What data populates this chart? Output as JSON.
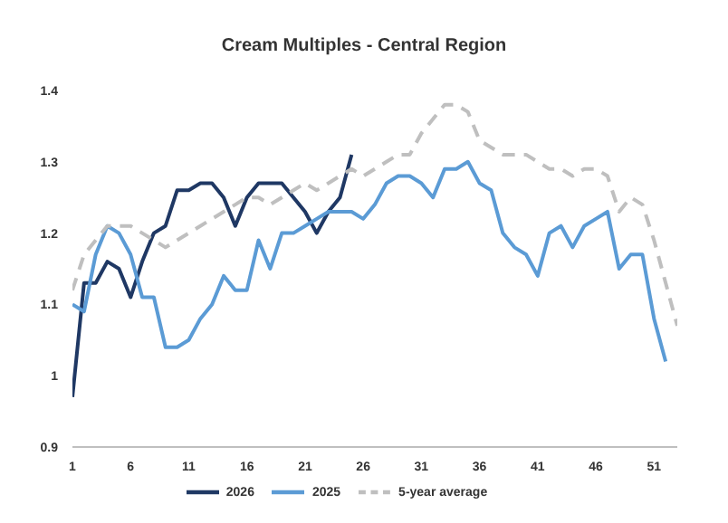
{
  "chart_data": {
    "type": "line",
    "title": "Cream Multiples - Central Region",
    "x": [
      1,
      2,
      3,
      4,
      5,
      6,
      7,
      8,
      9,
      10,
      11,
      12,
      13,
      14,
      15,
      16,
      17,
      18,
      19,
      20,
      21,
      22,
      23,
      24,
      25,
      26,
      27,
      28,
      29,
      30,
      31,
      32,
      33,
      34,
      35,
      36,
      37,
      38,
      39,
      40,
      41,
      42,
      43,
      44,
      45,
      46,
      47,
      48,
      49,
      50,
      51,
      52,
      53
    ],
    "xlim": [
      1,
      53
    ],
    "xticks": [
      1,
      6,
      11,
      16,
      21,
      26,
      31,
      36,
      41,
      46,
      51
    ],
    "series": [
      {
        "name": "2026",
        "color": "#1f3864",
        "line_style": "solid",
        "values": [
          0.97,
          1.13,
          1.13,
          1.16,
          1.15,
          1.11,
          1.16,
          1.2,
          1.21,
          1.26,
          1.26,
          1.27,
          1.27,
          1.25,
          1.21,
          1.25,
          1.27,
          1.27,
          1.27,
          1.25,
          1.23,
          1.2,
          1.23,
          1.25,
          1.31,
          null,
          null,
          null,
          null,
          null,
          null,
          null,
          null,
          null,
          null,
          null,
          null,
          null,
          null,
          null,
          null,
          null,
          null,
          null,
          null,
          null,
          null,
          null,
          null,
          null,
          null,
          null,
          null
        ]
      },
      {
        "name": "2025",
        "color": "#5b9bd5",
        "line_style": "solid",
        "values": [
          1.1,
          1.09,
          1.17,
          1.21,
          1.2,
          1.17,
          1.11,
          1.11,
          1.04,
          1.04,
          1.05,
          1.08,
          1.1,
          1.14,
          1.12,
          1.12,
          1.19,
          1.15,
          1.2,
          1.2,
          1.21,
          1.22,
          1.23,
          1.23,
          1.23,
          1.22,
          1.24,
          1.27,
          1.28,
          1.28,
          1.27,
          1.25,
          1.29,
          1.29,
          1.3,
          1.27,
          1.26,
          1.2,
          1.18,
          1.17,
          1.14,
          1.2,
          1.21,
          1.18,
          1.21,
          1.22,
          1.23,
          1.15,
          1.17,
          1.17,
          1.08,
          1.02,
          null
        ]
      },
      {
        "name": "5-year average",
        "color": "#bfbfbf",
        "line_style": "dashed",
        "values": [
          1.12,
          1.17,
          1.19,
          1.21,
          1.21,
          1.21,
          1.2,
          1.19,
          1.18,
          1.19,
          1.2,
          1.21,
          1.22,
          1.23,
          1.24,
          1.25,
          1.25,
          1.24,
          1.25,
          1.26,
          1.27,
          1.26,
          1.27,
          1.28,
          1.29,
          1.28,
          1.29,
          1.3,
          1.31,
          1.31,
          1.34,
          1.36,
          1.38,
          1.38,
          1.37,
          1.33,
          1.32,
          1.31,
          1.31,
          1.31,
          1.3,
          1.29,
          1.29,
          1.28,
          1.29,
          1.29,
          1.28,
          1.23,
          1.25,
          1.24,
          1.19,
          1.13,
          1.07
        ]
      }
    ],
    "ylim": [
      0.9,
      1.4
    ],
    "yticks": [
      0.9,
      1,
      1.1,
      1.2,
      1.3,
      1.4
    ],
    "grid": false,
    "legend": "bottom",
    "marker": "none"
  }
}
